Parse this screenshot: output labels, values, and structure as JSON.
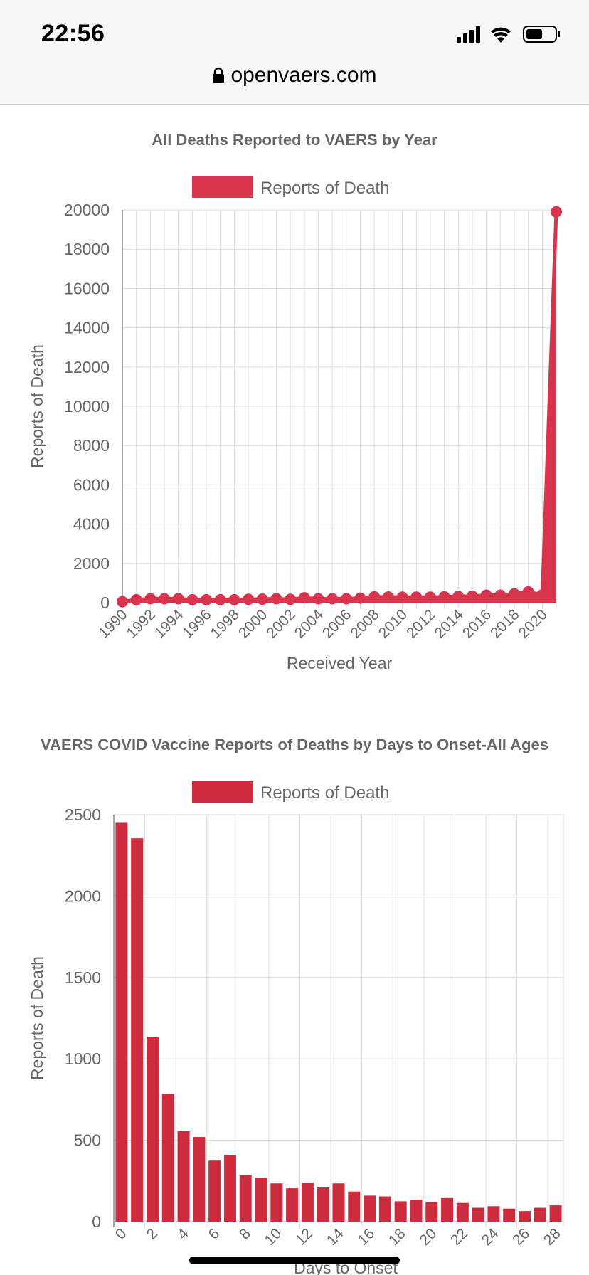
{
  "status": {
    "time": "22:56"
  },
  "browser": {
    "url": "openvaers.com"
  },
  "colors": {
    "accent": "#d9344d",
    "accent_dark": "#cc2c3e",
    "grid": "#dddddd",
    "axis": "#888888",
    "text": "#666666"
  },
  "icons": {
    "lock": "lock-icon",
    "signal": "signal-icon",
    "wifi": "wifi-icon",
    "battery": "battery-icon"
  },
  "chart_data": [
    {
      "type": "line",
      "title": "All Deaths Reported to VAERS by Year",
      "legend": "Reports of Death",
      "legend_position": "top",
      "xlabel": "Received Year",
      "ylabel": "Reports of Death",
      "ylim": [
        0,
        20000
      ],
      "yticks": [
        0,
        2000,
        4000,
        6000,
        8000,
        10000,
        12000,
        14000,
        16000,
        18000,
        20000
      ],
      "xticks": [
        "1990",
        "1992",
        "1994",
        "1996",
        "1998",
        "2000",
        "2002",
        "2004",
        "2006",
        "2008",
        "2010",
        "2012",
        "2014",
        "2016",
        "2018",
        "2020"
      ],
      "x": [
        1990,
        1991,
        1992,
        1993,
        1994,
        1995,
        1996,
        1997,
        1998,
        1999,
        2000,
        2001,
        2002,
        2003,
        2004,
        2005,
        2006,
        2007,
        2008,
        2009,
        2010,
        2011,
        2012,
        2013,
        2014,
        2015,
        2016,
        2017,
        2018,
        2019,
        2020,
        2021
      ],
      "values": [
        50,
        150,
        200,
        200,
        200,
        150,
        150,
        150,
        150,
        170,
        180,
        200,
        170,
        250,
        200,
        200,
        200,
        230,
        300,
        290,
        280,
        280,
        280,
        300,
        320,
        330,
        380,
        380,
        450,
        550,
        400,
        19900
      ],
      "grid": true
    },
    {
      "type": "bar",
      "title": "VAERS COVID Vaccine Reports of Deaths by Days to Onset-All Ages",
      "legend": "Reports of Death",
      "legend_position": "top",
      "xlabel": "Days to Onset",
      "ylabel": "Reports of Death",
      "ylim": [
        0,
        2500
      ],
      "yticks": [
        0,
        500,
        1000,
        1500,
        2000,
        2500
      ],
      "xticks": [
        "0",
        "2",
        "4",
        "6",
        "8",
        "10",
        "12",
        "14",
        "16",
        "18",
        "20",
        "22",
        "24",
        "26",
        "28"
      ],
      "categories": [
        "0",
        "1",
        "2",
        "3",
        "4",
        "5",
        "6",
        "7",
        "8",
        "9",
        "10",
        "11",
        "12",
        "13",
        "14",
        "15",
        "16",
        "17",
        "18",
        "19",
        "20",
        "21",
        "22",
        "23",
        "24",
        "25",
        "26",
        "27",
        "28"
      ],
      "values": [
        2450,
        2355,
        1135,
        785,
        555,
        520,
        375,
        410,
        285,
        270,
        235,
        205,
        240,
        210,
        235,
        185,
        160,
        155,
        125,
        135,
        120,
        145,
        115,
        85,
        95,
        80,
        65,
        85,
        100
      ],
      "grid": true
    }
  ]
}
